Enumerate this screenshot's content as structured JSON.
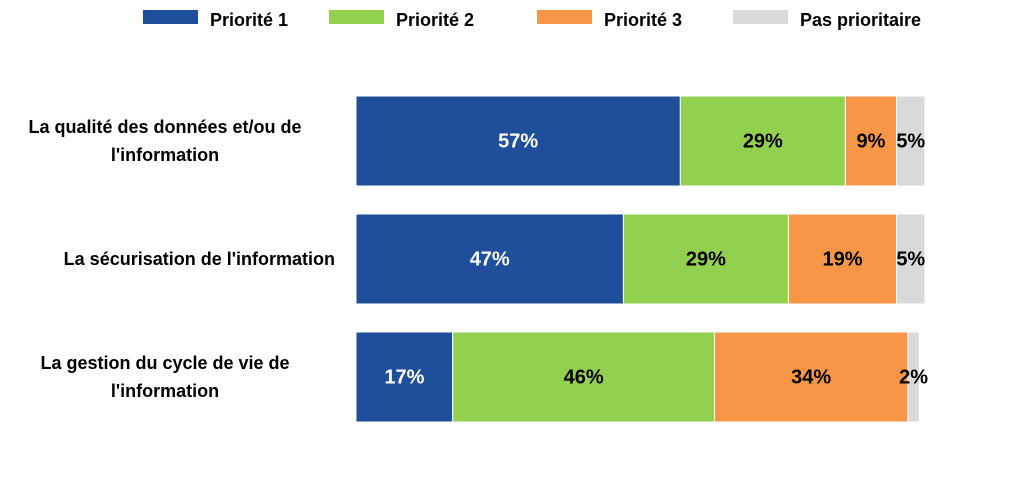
{
  "chart_data": {
    "type": "stacked-bar-horizontal",
    "categories": [
      "La qualité des données et/ou de l'information",
      "La sécurisation de l'information",
      "La gestion du cycle de vie de l'information"
    ],
    "series": [
      {
        "name": "Priorité 1",
        "color": "#1f4e9a",
        "label_color": "#ffffff",
        "values": [
          57,
          47,
          17
        ],
        "value_labels": [
          "57%",
          "47%",
          "17%"
        ]
      },
      {
        "name": "Priorité 2",
        "color": "#92d050",
        "label_color": "#000000",
        "values": [
          29,
          29,
          46
        ],
        "value_labels": [
          "29%",
          "29%",
          "46%"
        ]
      },
      {
        "name": "Priorité 3",
        "color": "#f79646",
        "label_color": "#000000",
        "values": [
          9,
          19,
          34
        ],
        "value_labels": [
          "9%",
          "19%",
          "34%"
        ]
      },
      {
        "name": "Pas prioritaire",
        "color": "#d9d9d9",
        "label_color": "#000000",
        "values": [
          5,
          5,
          2
        ],
        "value_labels": [
          "5%",
          "5%",
          "2%"
        ]
      }
    ],
    "xlim": [
      0,
      100
    ],
    "legend": "top"
  }
}
